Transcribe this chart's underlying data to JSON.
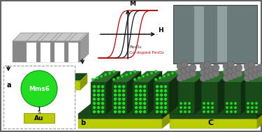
{
  "bg_color": "#f5f5f5",
  "border_color": "#444444",
  "panel_a_label": "a",
  "panel_b_label": "b",
  "panel_c_label": "C",
  "gray_light": "#c8c8c8",
  "gray_dark": "#888888",
  "gray_side": "#999999",
  "darkgreen": "#1a4a1a",
  "darkgreen_side": "#0f2e0f",
  "midgreen": "#2a6e2a",
  "yellow": "#b8cc00",
  "yellow_side": "#8a9900",
  "bright_green": "#22dd22",
  "bright_green_dark": "#118811",
  "nanoparticle": "#787878",
  "nanoparticle_dark": "#555555",
  "black": "#111111",
  "red": "#cc0000",
  "sem_bg": "#6a7a7a",
  "sem_stripe": "#aabbbb",
  "white": "#ffffff",
  "legend_fe3o4": "Fe₃O₄",
  "legend_codoped": "Co-doped Fe₃O₄",
  "axis_M": "M",
  "axis_H": "H",
  "mms6_label": "Mms6",
  "s_label": "S",
  "au_label": "Au",
  "panel_bg": "#ffffff",
  "dashed_border": "#999999"
}
